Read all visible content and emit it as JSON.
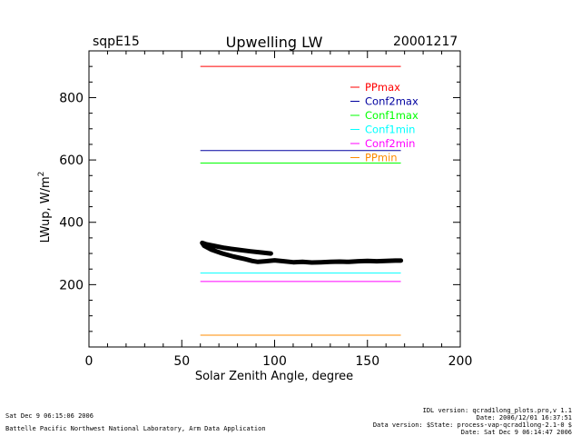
{
  "header": {
    "site": "sqpE15",
    "date": "20001217"
  },
  "chart_data": {
    "type": "line",
    "title": "Upwelling LW",
    "xlabel": "Solar Zenith Angle, degree",
    "ylabel_base": "LWup, W/m",
    "ylabel_sup": "2",
    "xlim": [
      0,
      200
    ],
    "ylim": [
      0,
      950
    ],
    "xticks": [
      0,
      50,
      100,
      150,
      200
    ],
    "yticks": [
      200,
      400,
      600,
      800
    ],
    "limits": [
      {
        "name": "PPmax",
        "value": 900,
        "color": "#ff0000",
        "x_range": [
          60,
          168
        ]
      },
      {
        "name": "Conf2max",
        "value": 630,
        "color": "#00009f",
        "x_range": [
          60,
          168
        ]
      },
      {
        "name": "Conf1max",
        "value": 590,
        "color": "#00ff00",
        "x_range": [
          60,
          168
        ]
      },
      {
        "name": "Conf1min",
        "value": 237,
        "color": "#00ffff",
        "x_range": [
          60,
          168
        ]
      },
      {
        "name": "Conf2min",
        "value": 210,
        "color": "#ff00ff",
        "x_range": [
          60,
          168
        ]
      },
      {
        "name": "PPmin",
        "value": 38,
        "color": "#ff8c00",
        "x_range": [
          60,
          168
        ]
      }
    ],
    "series": [
      {
        "name": "LWup",
        "color": "#000000",
        "x": [
          98,
          93,
          87,
          80,
          73,
          67,
          63,
          61,
          62,
          66,
          72,
          78,
          84,
          88,
          91,
          95,
          100,
          105,
          110,
          115,
          120,
          125,
          130,
          135,
          140,
          145,
          150,
          155,
          160,
          165,
          168
        ],
        "y": [
          300,
          303,
          307,
          312,
          318,
          325,
          330,
          334,
          325,
          312,
          300,
          290,
          282,
          276,
          273,
          275,
          278,
          275,
          272,
          273,
          271,
          272,
          273,
          274,
          273,
          275,
          276,
          275,
          276,
          277,
          277
        ]
      }
    ]
  },
  "footer": {
    "left_date": "Sat Dec  9 06:15:06 2006",
    "left_org": "Battelle Pacific Northwest National Laboratory, Arm Data Application",
    "right_lines": [
      "IDL version: qcrad1long_plots.pro,v 1.1",
      "Date: 2006/12/01 16:37:51",
      "Data version: $State: process-vap-qcrad1long-2.1-0 $",
      "Date: Sat Dec  9 06:14:47 2006"
    ]
  }
}
